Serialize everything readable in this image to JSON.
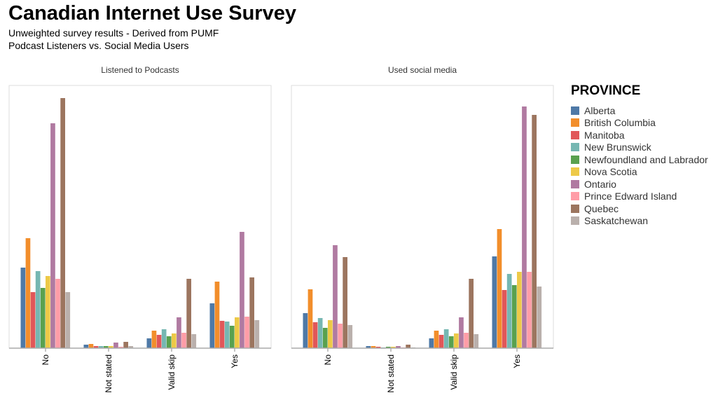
{
  "title": "Canadian Internet Use Survey",
  "subtitle1": "Unweighted survey results - Derived from PUMF",
  "subtitle2": "Podcast Listeners vs. Social Media Users",
  "legend_title": "PROVINCE",
  "provinces": [
    "Alberta",
    "British Columbia",
    "Manitoba",
    "New Brunswick",
    "Newfoundland and Labrador",
    "Nova Scotia",
    "Ontario",
    "Prince Edward Island",
    "Quebec",
    "Saskatchewan"
  ],
  "colors": [
    "#4e79a7",
    "#f28e2b",
    "#e15759",
    "#76b7b2",
    "#59a14f",
    "#edc948",
    "#b07aa1",
    "#ff9da7",
    "#9c755f",
    "#bab0ac"
  ],
  "chart_data": [
    {
      "type": "bar",
      "title": "Listened to Podcasts",
      "categories": [
        "No",
        "Not stated",
        "Valid skip",
        "Yes"
      ],
      "ylim": [
        0,
        375
      ],
      "series": [
        {
          "name": "Alberta",
          "values": [
            115,
            5,
            14,
            64
          ]
        },
        {
          "name": "British Columbia",
          "values": [
            157,
            6,
            25,
            95
          ]
        },
        {
          "name": "Manitoba",
          "values": [
            80,
            3,
            19,
            39
          ]
        },
        {
          "name": "New Brunswick",
          "values": [
            110,
            3,
            27,
            38
          ]
        },
        {
          "name": "Newfoundland and Labrador",
          "values": [
            86,
            3,
            17,
            32
          ]
        },
        {
          "name": "Nova Scotia",
          "values": [
            103,
            3,
            21,
            44
          ]
        },
        {
          "name": "Ontario",
          "values": [
            321,
            8,
            44,
            166
          ]
        },
        {
          "name": "Prince Edward Island",
          "values": [
            99,
            2,
            22,
            45
          ]
        },
        {
          "name": "Quebec",
          "values": [
            357,
            9,
            99,
            101
          ]
        },
        {
          "name": "Saskatchewan",
          "values": [
            80,
            3,
            20,
            40
          ]
        }
      ]
    },
    {
      "type": "bar",
      "title": "Used social media",
      "categories": [
        "No",
        "Not stated",
        "Valid skip",
        "Yes"
      ],
      "ylim": [
        0,
        375
      ],
      "series": [
        {
          "name": "Alberta",
          "values": [
            50,
            3,
            14,
            131
          ]
        },
        {
          "name": "British Columbia",
          "values": [
            84,
            3,
            25,
            170
          ]
        },
        {
          "name": "Manitoba",
          "values": [
            37,
            2,
            19,
            83
          ]
        },
        {
          "name": "New Brunswick",
          "values": [
            43,
            1,
            27,
            106
          ]
        },
        {
          "name": "Newfoundland and Labrador",
          "values": [
            29,
            2,
            17,
            90
          ]
        },
        {
          "name": "Nova Scotia",
          "values": [
            40,
            2,
            21,
            109
          ]
        },
        {
          "name": "Ontario",
          "values": [
            147,
            3,
            44,
            345
          ]
        },
        {
          "name": "Prince Edward Island",
          "values": [
            35,
            1,
            22,
            109
          ]
        },
        {
          "name": "Quebec",
          "values": [
            130,
            5,
            99,
            333
          ]
        },
        {
          "name": "Saskatchewan",
          "values": [
            33,
            1,
            20,
            88
          ]
        }
      ]
    }
  ]
}
